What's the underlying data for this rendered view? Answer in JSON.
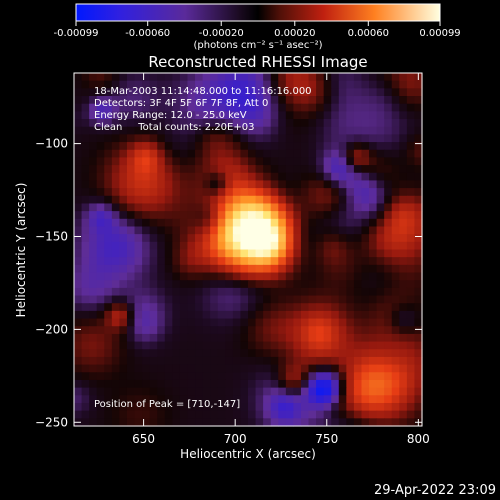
{
  "colorbar": {
    "tick_labels": [
      "-0.00099",
      "-0.00060",
      "-0.00020",
      "0.00020",
      "0.00060",
      "0.00099"
    ],
    "tick_values": [
      -0.00099,
      -0.0006,
      -0.0002,
      0.0002,
      0.0006,
      0.00099
    ],
    "range": [
      -0.00099,
      0.00099
    ],
    "units_label": "(photons cm⁻² s⁻¹ asec⁻²)"
  },
  "chart_data": {
    "type": "heatmap",
    "title": "Reconstructed RHESSI Image",
    "xlabel": "Heliocentric X (arcsec)",
    "ylabel": "Heliocentric Y (arcsec)",
    "xlim": [
      612,
      802
    ],
    "ylim": [
      -252,
      -62
    ],
    "x_ticks": [
      650,
      700,
      750,
      800
    ],
    "x_tick_labels": [
      "650",
      "700",
      "750",
      "800"
    ],
    "y_ticks": [
      -100,
      -150,
      -200,
      -250
    ],
    "y_tick_labels": [
      "−100",
      "−150",
      "−200",
      "−250"
    ],
    "peak": [
      710,
      -147
    ],
    "annotations": {
      "time": "18-Mar-2003 11:14:48.000 to 11:16:16.000",
      "detectors": "Detectors: 3F 4F 5F 6F 7F 8F, Att 0",
      "energy": "Energy Range: 12.0 - 25.0 keV",
      "clean": "Clean     Total counts: 2.20E+03",
      "peak_text": "Position of Peak = [710,-147]"
    },
    "colors": {
      "negative": "#3020ff",
      "mid_negative": "#6030a0",
      "zero": "#000000",
      "positive": "#d03010",
      "peak": "#ffffe0"
    }
  },
  "footer": {
    "timestamp": "29-Apr-2022 23:09"
  }
}
